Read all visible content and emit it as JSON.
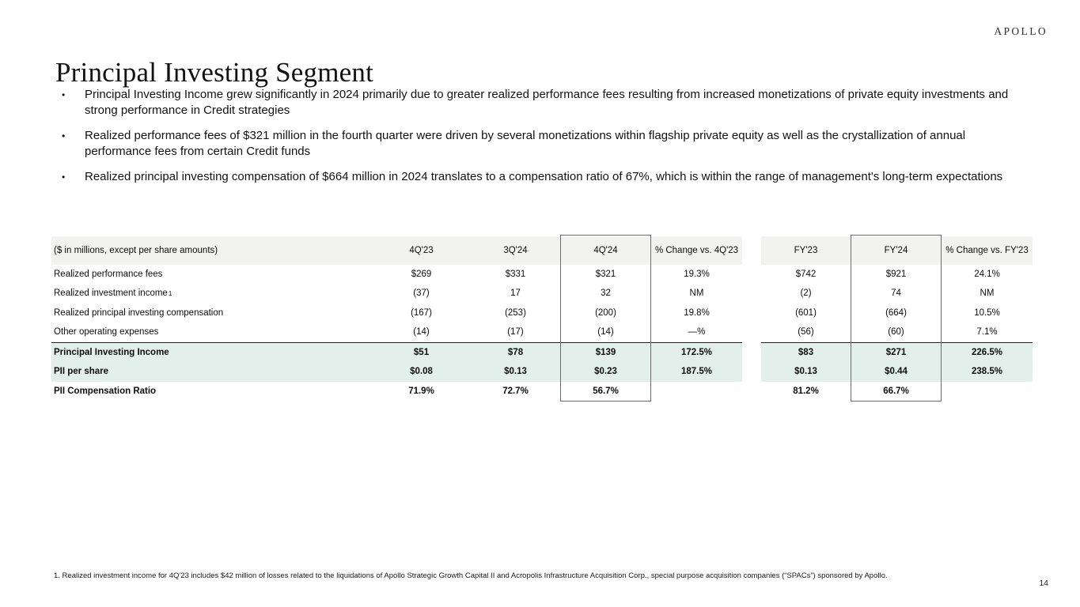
{
  "brand": {
    "logo_text": "APOLLO"
  },
  "page": {
    "title": "Principal Investing Segment",
    "page_number": "14"
  },
  "bullets": [
    "Principal Investing Income grew significantly in 2024 primarily due to greater realized performance fees resulting from increased monetizations of private equity investments and strong performance in Credit strategies",
    "Realized performance fees of $321 million in the fourth quarter were driven by several monetizations within flagship private equity as well as the crystallization of annual performance fees from certain Credit funds",
    "Realized principal investing compensation of $664 million in 2024 translates to a compensation ratio of 67%, which is within the range of management's long-term expectations"
  ],
  "table": {
    "header_label": "($ in millions, except per share amounts)",
    "columns": [
      "4Q'23",
      "3Q'24",
      "4Q'24",
      "% Change vs. 4Q'23",
      "FY'23",
      "FY'24",
      "% Change vs. FY'23"
    ],
    "rows": [
      {
        "label": "Realized performance fees",
        "sup": "",
        "values": [
          "$269",
          "$331",
          "$321",
          "19.3%",
          "$742",
          "$921",
          "24.1%"
        ],
        "bold": false,
        "highlight": false,
        "separator_above": false
      },
      {
        "label": "Realized investment income",
        "sup": "1",
        "values": [
          "(37)",
          "17",
          "32",
          "NM",
          "(2)",
          "74",
          "NM"
        ],
        "bold": false,
        "highlight": false,
        "separator_above": false
      },
      {
        "label": "Realized principal investing compensation",
        "sup": "",
        "values": [
          "(167)",
          "(253)",
          "(200)",
          "19.8%",
          "(601)",
          "(664)",
          "10.5%"
        ],
        "bold": false,
        "highlight": false,
        "separator_above": false
      },
      {
        "label": "Other operating expenses",
        "sup": "",
        "values": [
          "(14)",
          "(17)",
          "(14)",
          "—%",
          "(56)",
          "(60)",
          "7.1%"
        ],
        "bold": false,
        "highlight": false,
        "separator_above": false
      },
      {
        "label": "Principal Investing Income",
        "sup": "",
        "values": [
          "$51",
          "$78",
          "$139",
          "172.5%",
          "$83",
          "$271",
          "226.5%"
        ],
        "bold": true,
        "highlight": true,
        "separator_above": true
      },
      {
        "label": "PII per share",
        "sup": "",
        "values": [
          "$0.08",
          "$0.13",
          "$0.23",
          "187.5%",
          "$0.13",
          "$0.44",
          "238.5%"
        ],
        "bold": true,
        "highlight": true,
        "separator_above": false
      },
      {
        "label": "PII Compensation Ratio",
        "sup": "",
        "values": [
          "71.9%",
          "72.7%",
          "56.7%",
          "",
          "81.2%",
          "66.7%",
          ""
        ],
        "bold": true,
        "highlight": false,
        "separator_above": false
      }
    ]
  },
  "footnote": "1. Realized investment income for 4Q'23 includes $42 million of losses related to the liquidations of Apollo Strategic Growth Capital II and Acropolis Infrastructure Acquisition Corp., special purpose acquisition companies (“SPACs”) sponsored by Apollo.",
  "colors": {
    "header_row_bg": "#f2f2f0",
    "highlight_row_bg": "#e2efea",
    "separator_line": "#1f1f1f",
    "column_box_border": "#6b6b6b"
  }
}
